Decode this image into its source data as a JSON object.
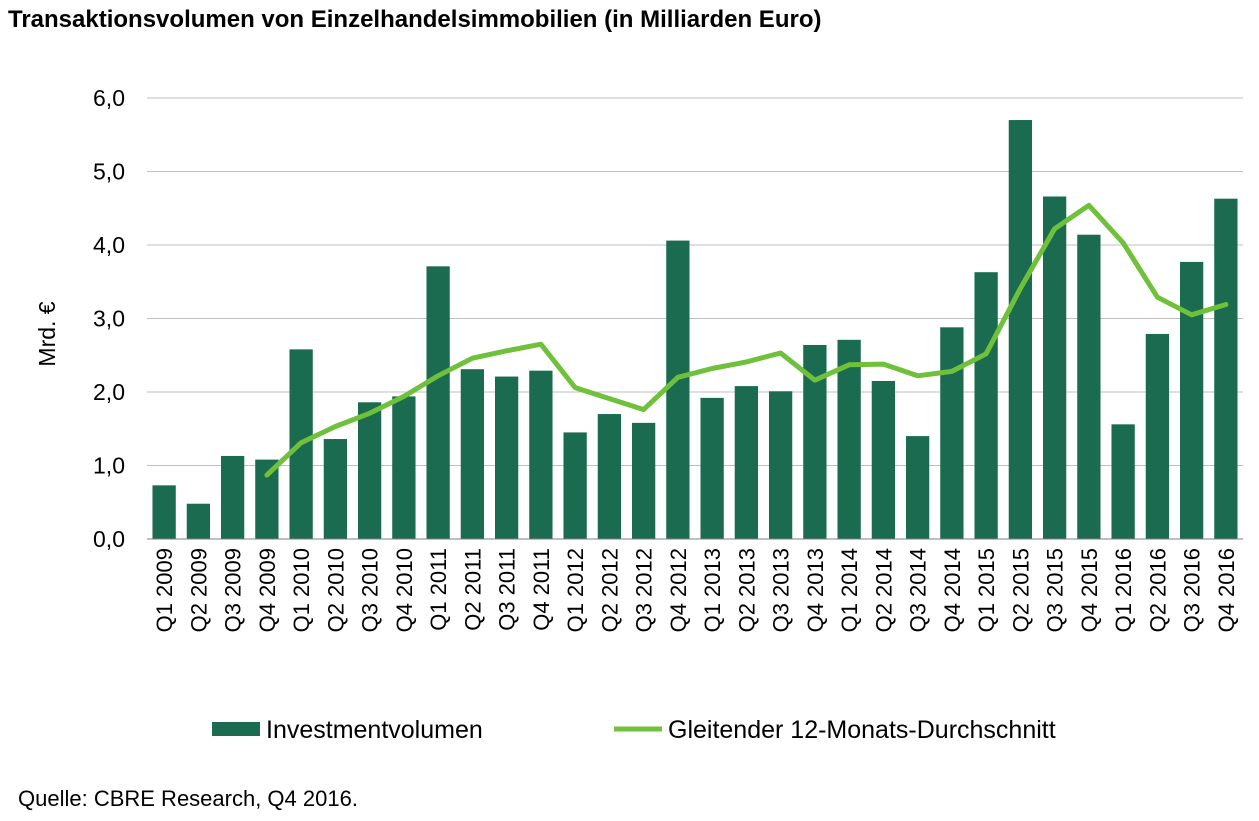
{
  "title": "Transaktionsvolumen von Einzelhandelsimmobilien (in Milliarden Euro)",
  "source": "Quelle: CBRE Research, Q4 2016.",
  "colors": {
    "bar": "#1a6b4f",
    "line": "#6fc03a",
    "grid": "#bfbfbf",
    "axis": "#7f7f7f"
  },
  "chart_data": {
    "type": "bar",
    "ylabel": "Mrd. €",
    "ylim": [
      0,
      6
    ],
    "yticks": [
      "0,0",
      "1,0",
      "2,0",
      "3,0",
      "4,0",
      "5,0",
      "6,0"
    ],
    "grid": true,
    "legend_position": "bottom",
    "categories": [
      "Q1 2009",
      "Q2 2009",
      "Q3 2009",
      "Q4 2009",
      "Q1 2010",
      "Q2 2010",
      "Q3 2010",
      "Q4 2010",
      "Q1 2011",
      "Q2 2011",
      "Q3 2011",
      "Q4 2011",
      "Q1 2012",
      "Q2 2012",
      "Q3 2012",
      "Q4 2012",
      "Q1 2013",
      "Q2 2013",
      "Q3 2013",
      "Q4 2013",
      "Q1 2014",
      "Q2 2014",
      "Q3 2014",
      "Q4 2014",
      "Q1 2015",
      "Q2 2015",
      "Q3 2015",
      "Q4 2015",
      "Q1 2016",
      "Q2 2016",
      "Q3 2016",
      "Q4 2016"
    ],
    "series": [
      {
        "name": "Investmentvolumen",
        "type": "bar",
        "values": [
          0.73,
          0.48,
          1.13,
          1.08,
          2.58,
          1.36,
          1.86,
          1.94,
          3.71,
          2.31,
          2.21,
          2.29,
          1.45,
          1.7,
          1.58,
          4.06,
          1.92,
          2.08,
          2.01,
          2.64,
          2.71,
          2.15,
          1.4,
          2.88,
          3.63,
          5.7,
          4.66,
          4.14,
          1.56,
          2.79,
          3.77,
          4.63
        ]
      },
      {
        "name": "Gleitender 12-Monats-Durchschnitt",
        "type": "line",
        "values": [
          null,
          null,
          null,
          0.87,
          1.31,
          1.53,
          1.71,
          1.94,
          2.22,
          2.46,
          2.56,
          2.65,
          2.06,
          1.91,
          1.76,
          2.2,
          2.32,
          2.41,
          2.53,
          2.16,
          2.37,
          2.38,
          2.22,
          2.28,
          2.52,
          3.41,
          4.22,
          4.54,
          4.03,
          3.29,
          3.05,
          3.19
        ]
      }
    ]
  }
}
